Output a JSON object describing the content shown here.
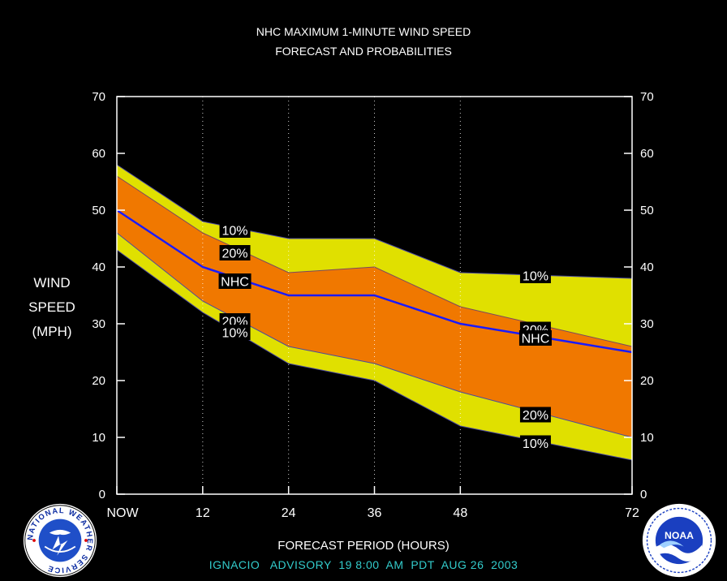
{
  "titles": {
    "line1": "NHC MAXIMUM 1-MINUTE WIND SPEED",
    "line2": "FORECAST AND PROBABILITIES"
  },
  "y_label": {
    "line1": "WIND",
    "line2": "SPEED",
    "line3": "(MPH)"
  },
  "x_label": "FORECAST PERIOD (HOURS)",
  "footer": "IGNACIO   ADVISORY  19 8:00  AM  PDT  AUG 26  2003",
  "logos": {
    "left": {
      "icon": "nws-logo-icon",
      "text": "NATIONAL WEATHER SERVICE"
    },
    "right": {
      "icon": "noaa-logo-icon",
      "text": "NOAA"
    }
  },
  "colors": {
    "background": "#000000",
    "band10": "#e0e000",
    "band20": "#f07800",
    "nhc": "#1a1aff",
    "footer": "#33cccc",
    "grid": "#ffffff"
  },
  "chart_data": {
    "type": "area",
    "xlim": [
      0,
      72
    ],
    "ylim": [
      0,
      70
    ],
    "x_ticks": [
      0,
      12,
      24,
      36,
      48,
      72
    ],
    "x_tick_labels": [
      "NOW",
      "12",
      "24",
      "36",
      "48",
      "72"
    ],
    "y_ticks": [
      0,
      10,
      20,
      30,
      40,
      50,
      60,
      70
    ],
    "y_tick_labels": [
      "0",
      "10",
      "20",
      "30",
      "40",
      "50",
      "60",
      "70"
    ],
    "grid": "vertical dotted",
    "x": [
      0,
      12,
      24,
      36,
      48,
      72
    ],
    "series": [
      {
        "name": "10%",
        "upper": [
          58,
          48,
          45,
          45,
          39,
          38
        ],
        "lower": [
          43,
          32,
          23,
          20,
          12,
          6
        ]
      },
      {
        "name": "20%",
        "upper": [
          56,
          46,
          39,
          40,
          33,
          26
        ],
        "lower": [
          46,
          34,
          26,
          23,
          18,
          10
        ]
      },
      {
        "name": "NHC",
        "values": [
          50,
          40,
          35,
          35,
          30,
          25
        ]
      }
    ],
    "annotations": [
      {
        "text": "10%",
        "x": 16.5,
        "y": 46.5
      },
      {
        "text": "20%",
        "x": 16.5,
        "y": 42.5
      },
      {
        "text": "NHC",
        "x": 16.5,
        "y": 37.5
      },
      {
        "text": "20%",
        "x": 16.5,
        "y": 30.5
      },
      {
        "text": "10%",
        "x": 16.5,
        "y": 28.5
      },
      {
        "text": "10%",
        "x": 58.5,
        "y": 38.5
      },
      {
        "text": "20%",
        "x": 58.5,
        "y": 29.0
      },
      {
        "text": "NHC",
        "x": 58.5,
        "y": 27.5
      },
      {
        "text": "20%",
        "x": 58.5,
        "y": 14.0
      },
      {
        "text": "10%",
        "x": 58.5,
        "y": 9.0
      }
    ]
  }
}
